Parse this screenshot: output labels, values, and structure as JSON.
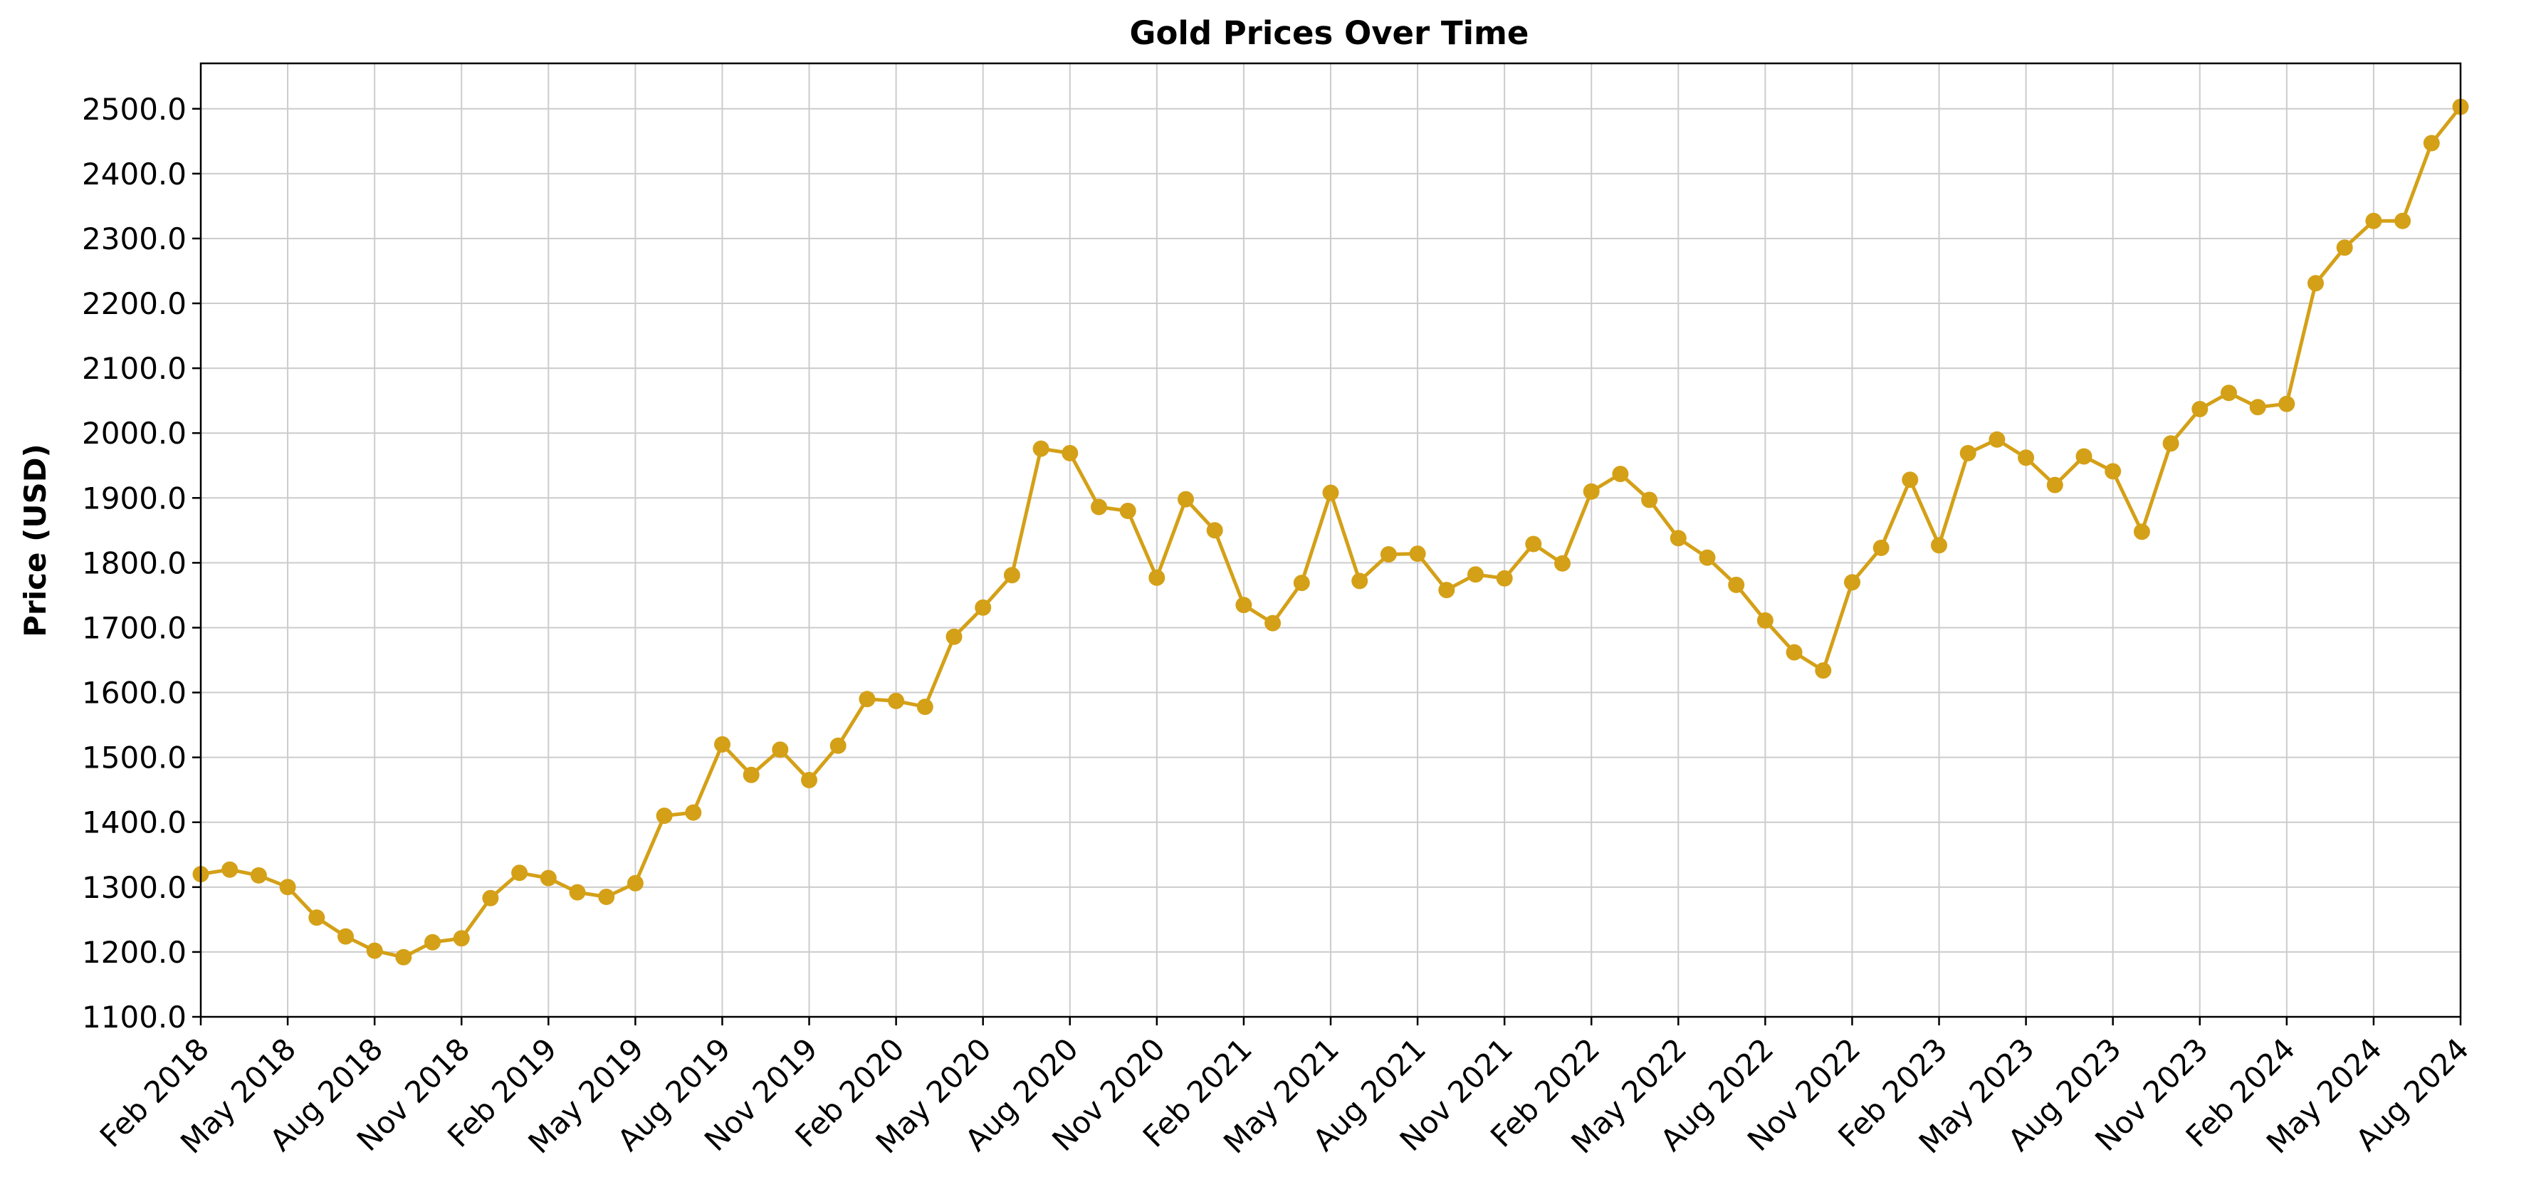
{
  "chart_data": {
    "type": "line",
    "title": "Gold Prices Over Time",
    "xlabel": "",
    "ylabel": "Price (USD)",
    "ylim": [
      1100,
      2570
    ],
    "yticks": [
      "1100.0",
      "1200.0",
      "1300.0",
      "1400.0",
      "1500.0",
      "1600.0",
      "1700.0",
      "1800.0",
      "1900.0",
      "2000.0",
      "2100.0",
      "2200.0",
      "2300.0",
      "2400.0",
      "2500.0"
    ],
    "xlim": [
      "Feb 2018",
      "Aug 2024"
    ],
    "xticks": [
      "Feb 2018",
      "May 2018",
      "Aug 2018",
      "Nov 2018",
      "Feb 2019",
      "May 2019",
      "Aug 2019",
      "Nov 2019",
      "Feb 2020",
      "May 2020",
      "Aug 2020",
      "Nov 2020",
      "Feb 2021",
      "May 2021",
      "Aug 2021",
      "Nov 2021",
      "Feb 2022",
      "May 2022",
      "Aug 2022",
      "Nov 2022",
      "Feb 2023",
      "May 2023",
      "Aug 2023",
      "Nov 2023",
      "Feb 2024",
      "May 2024",
      "Aug 2024"
    ],
    "grid": true,
    "color": "#D4A017",
    "series": [
      {
        "x": [
          "Feb 2018",
          "Mar 2018",
          "Apr 2018",
          "May 2018",
          "Jun 2018",
          "Jul 2018",
          "Aug 2018",
          "Sep 2018",
          "Oct 2018",
          "Nov 2018",
          "Dec 2018",
          "Jan 2019",
          "Feb 2019",
          "Mar 2019",
          "Apr 2019",
          "May 2019",
          "Jun 2019",
          "Jul 2019",
          "Aug 2019",
          "Sep 2019",
          "Oct 2019",
          "Nov 2019",
          "Dec 2019",
          "Jan 2020",
          "Feb 2020",
          "Mar 2020",
          "Apr 2020",
          "May 2020",
          "Jun 2020",
          "Jul 2020",
          "Aug 2020",
          "Sep 2020",
          "Oct 2020",
          "Nov 2020",
          "Dec 2020",
          "Jan 2021",
          "Feb 2021",
          "Mar 2021",
          "Apr 2021",
          "May 2021",
          "Jun 2021",
          "Jul 2021",
          "Aug 2021",
          "Sep 2021",
          "Oct 2021",
          "Nov 2021",
          "Dec 2021",
          "Jan 2022",
          "Feb 2022",
          "Mar 2022",
          "Apr 2022",
          "May 2022",
          "Jun 2022",
          "Jul 2022",
          "Aug 2022",
          "Sep 2022",
          "Oct 2022",
          "Nov 2022",
          "Dec 2022",
          "Jan 2023",
          "Feb 2023",
          "Mar 2023",
          "Apr 2023",
          "May 2023",
          "Jun 2023",
          "Jul 2023",
          "Aug 2023",
          "Sep 2023",
          "Oct 2023",
          "Nov 2023",
          "Dec 2023",
          "Jan 2024",
          "Feb 2024",
          "Mar 2024",
          "Apr 2024",
          "May 2024",
          "Jun 2024",
          "Jul 2024",
          "Aug 2024"
        ],
        "values": [
          1320,
          1327,
          1318,
          1300,
          1253,
          1224,
          1202,
          1192,
          1215,
          1221,
          1283,
          1322,
          1314,
          1292,
          1285,
          1306,
          1410,
          1415,
          1520,
          1473,
          1512,
          1465,
          1518,
          1590,
          1587,
          1578,
          1686,
          1731,
          1781,
          1976,
          1969,
          1886,
          1880,
          1777,
          1898,
          1850,
          1735,
          1707,
          1769,
          1908,
          1772,
          1813,
          1814,
          1758,
          1782,
          1776,
          1829,
          1799,
          1910,
          1937,
          1897,
          1838,
          1808,
          1766,
          1711,
          1662,
          1634,
          1770,
          1823,
          1928,
          1827,
          1969,
          1990,
          1962,
          1920,
          1964,
          1941,
          1848,
          1984,
          2037,
          2062,
          2040,
          2045,
          2231,
          2286,
          2327,
          2327,
          2447,
          2503
        ]
      }
    ]
  }
}
